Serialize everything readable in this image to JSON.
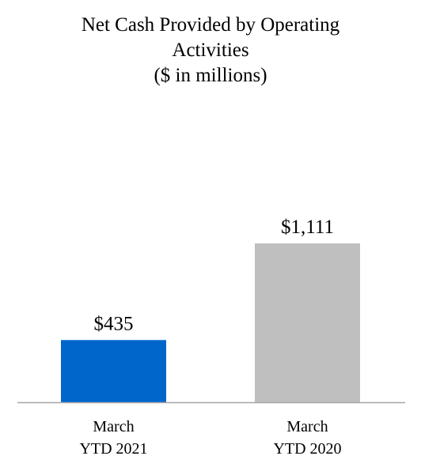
{
  "chart_data": {
    "type": "bar",
    "title_lines": [
      "Net Cash Provided by Operating",
      "Activities",
      "($ in millions)"
    ],
    "categories": [
      {
        "line1": "March",
        "line2": "YTD 2021"
      },
      {
        "line1": "March",
        "line2": "YTD 2020"
      }
    ],
    "values": [
      435,
      1111
    ],
    "value_labels": [
      "$435",
      "$1,111"
    ],
    "colors": [
      "#0066cc",
      "#bfbfbf"
    ],
    "axis_color": "#a6a6a6",
    "ylim": [
      0,
      1111
    ]
  }
}
